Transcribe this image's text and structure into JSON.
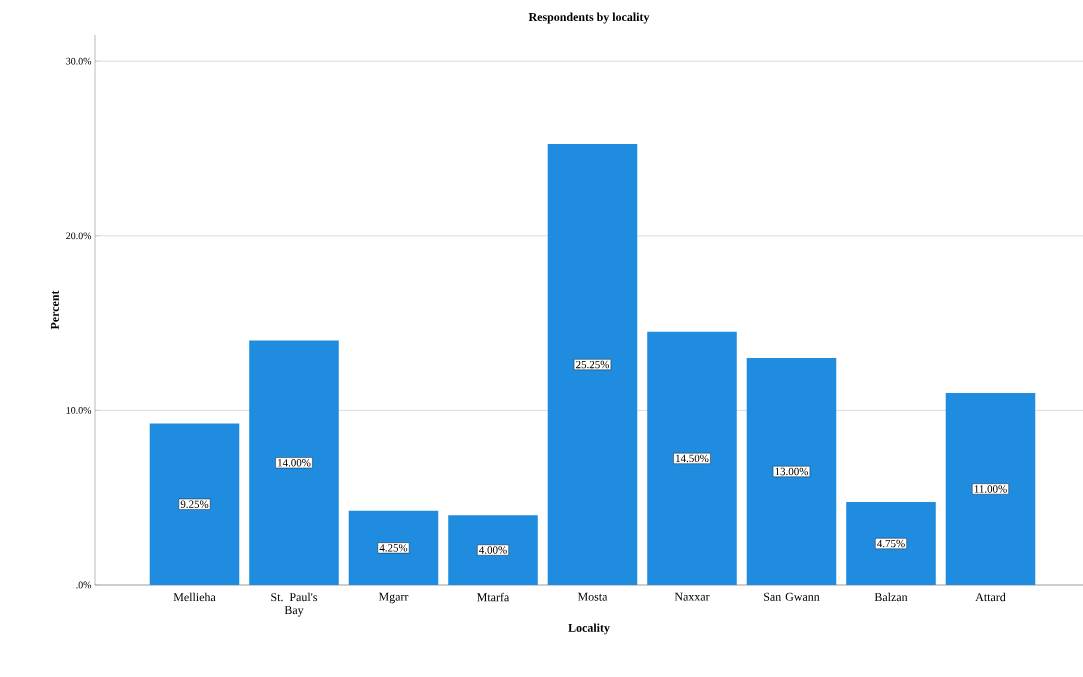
{
  "chart_data": {
    "type": "bar",
    "title": "Respondents by locality",
    "xlabel": "Locality",
    "ylabel": "Percent",
    "categories": [
      "Mellieha",
      "St. Paul's Bay",
      "Mgarr",
      "Mtarfa",
      "Mosta",
      "Naxxar",
      "San Gwann",
      "Balzan",
      "Attard"
    ],
    "values": [
      9.25,
      14.0,
      4.25,
      4.0,
      25.25,
      14.5,
      13.0,
      4.75,
      11.0
    ],
    "value_labels": [
      "9.25%",
      "14.00%",
      "4.25%",
      "4.00%",
      "25.25%",
      "14.50%",
      "13.00%",
      "4.75%",
      "11.00%"
    ],
    "color": "#1f8ce0",
    "ylim": [
      0,
      31.5
    ],
    "yticks": [
      {
        "value": 0,
        "label": ".0%"
      },
      {
        "value": 10,
        "label": "10.0%"
      },
      {
        "value": 20,
        "label": "20.0%"
      },
      {
        "value": 30,
        "label": "30.0%"
      }
    ],
    "grid": "y"
  }
}
